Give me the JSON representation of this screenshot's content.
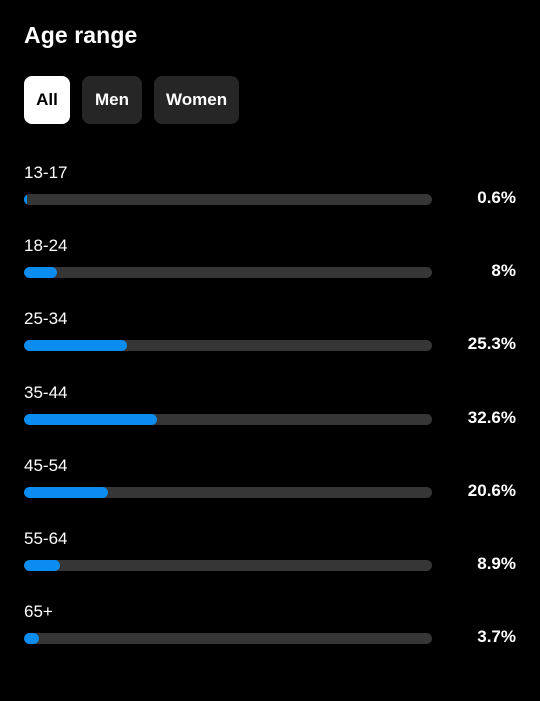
{
  "title": "Age range",
  "filters": {
    "all": "All",
    "men": "Men",
    "women": "Women",
    "selected": "All"
  },
  "colors": {
    "bar_fill": "#0a8cf0",
    "bar_track": "#363636",
    "chip_bg": "#262626",
    "chip_active_bg": "#ffffff"
  },
  "rows": [
    {
      "label": "13-17",
      "value_text": "0.6%"
    },
    {
      "label": "18-24",
      "value_text": "8%"
    },
    {
      "label": "25-34",
      "value_text": "25.3%"
    },
    {
      "label": "35-44",
      "value_text": "32.6%"
    },
    {
      "label": "45-54",
      "value_text": "20.6%"
    },
    {
      "label": "55-64",
      "value_text": "8.9%"
    },
    {
      "label": "65+",
      "value_text": "3.7%"
    }
  ],
  "bar_scale_max_percent": 100
}
